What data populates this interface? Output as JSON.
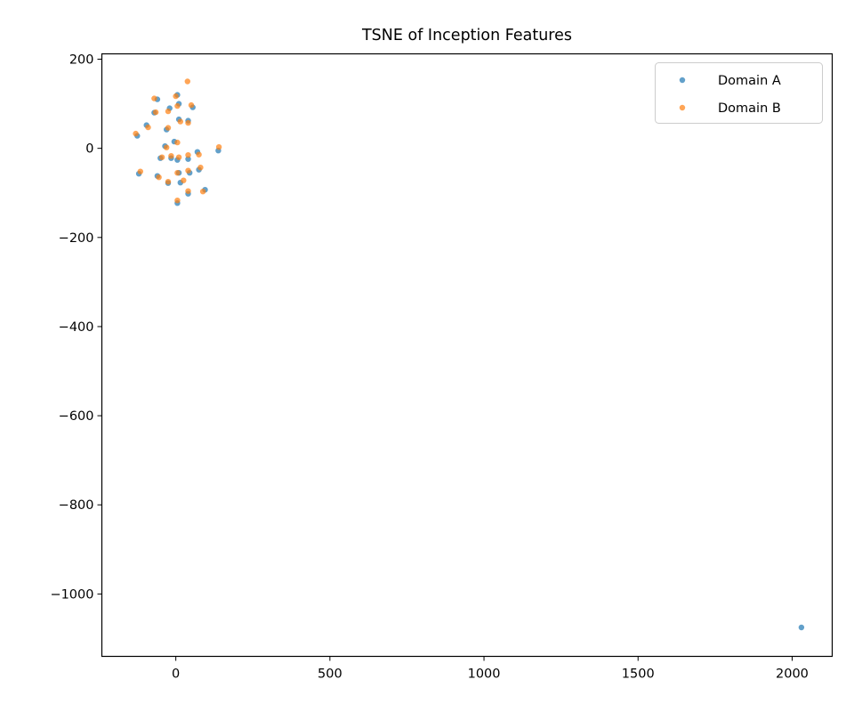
{
  "chart_data": {
    "type": "scatter",
    "title": "TSNE of Inception Features",
    "xlabel": "",
    "ylabel": "",
    "xlim": [
      -240,
      2130
    ],
    "ylim": [
      -1140,
      212
    ],
    "xticks": [
      0,
      500,
      1000,
      1500,
      2000
    ],
    "yticks": [
      200,
      0,
      -200,
      -400,
      -600,
      -800,
      -1000
    ],
    "grid": false,
    "legend_position": "top-right",
    "series": [
      {
        "name": "Domain A",
        "color": "#1f77b4",
        "points": [
          [
            -60,
            110
          ],
          [
            5,
            120
          ],
          [
            -20,
            90
          ],
          [
            10,
            100
          ],
          [
            55,
            92
          ],
          [
            -70,
            80
          ],
          [
            10,
            65
          ],
          [
            40,
            62
          ],
          [
            -95,
            52
          ],
          [
            -30,
            42
          ],
          [
            -125,
            28
          ],
          [
            -5,
            15
          ],
          [
            -35,
            5
          ],
          [
            70,
            -8
          ],
          [
            138,
            -5
          ],
          [
            -50,
            -22
          ],
          [
            -15,
            -22
          ],
          [
            5,
            -26
          ],
          [
            40,
            -24
          ],
          [
            75,
            -48
          ],
          [
            10,
            -55
          ],
          [
            45,
            -55
          ],
          [
            -120,
            -57
          ],
          [
            -60,
            -62
          ],
          [
            -25,
            -78
          ],
          [
            15,
            -77
          ],
          [
            95,
            -93
          ],
          [
            40,
            -102
          ],
          [
            5,
            -123
          ],
          [
            2030,
            -1075
          ]
        ]
      },
      {
        "name": "Domain B",
        "color": "#ff7f0e",
        "points": [
          [
            -70,
            112
          ],
          [
            38,
            150
          ],
          [
            0,
            117
          ],
          [
            5,
            95
          ],
          [
            50,
            97
          ],
          [
            -25,
            83
          ],
          [
            -65,
            81
          ],
          [
            15,
            60
          ],
          [
            40,
            57
          ],
          [
            -90,
            47
          ],
          [
            -25,
            46
          ],
          [
            -130,
            33
          ],
          [
            -45,
            -20
          ],
          [
            5,
            13
          ],
          [
            -30,
            2
          ],
          [
            140,
            3
          ],
          [
            75,
            -14
          ],
          [
            -15,
            -17
          ],
          [
            10,
            -20
          ],
          [
            40,
            -15
          ],
          [
            80,
            -43
          ],
          [
            5,
            -55
          ],
          [
            40,
            -50
          ],
          [
            -115,
            -52
          ],
          [
            -55,
            -65
          ],
          [
            -25,
            -75
          ],
          [
            25,
            -72
          ],
          [
            88,
            -97
          ],
          [
            40,
            -96
          ],
          [
            5,
            -117
          ]
        ]
      }
    ]
  }
}
